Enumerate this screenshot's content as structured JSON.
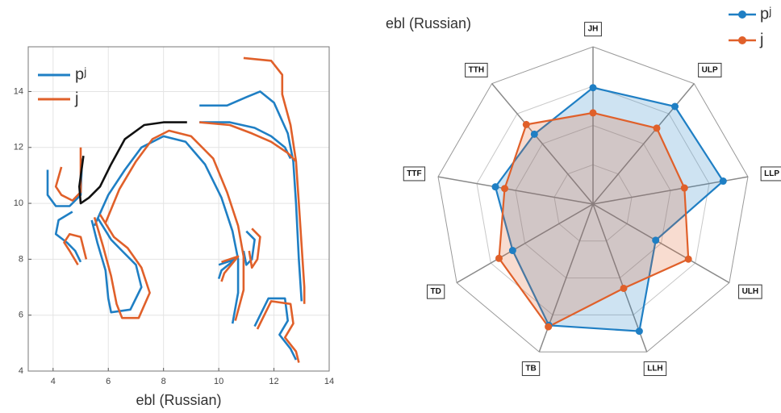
{
  "chart_data": [
    {
      "type": "line",
      "xlabel": "ebl (Russian)",
      "xlim": [
        3.1,
        14
      ],
      "ylim": [
        4,
        15.6
      ],
      "xticks": [
        4,
        6,
        8,
        10,
        12,
        14
      ],
      "yticks": [
        4,
        6,
        8,
        10,
        12,
        14
      ],
      "grid": true,
      "legend": "upper left",
      "series": [
        {
          "name": "pʲ",
          "color": "#1f7fc4",
          "x": [
            3.8,
            3.8,
            4.1,
            4.6,
            5.0,
            5.05,
            null,
            4.7,
            4.2,
            4.1,
            4.5,
            4.8,
            5.0,
            null,
            5.4,
            5.6,
            5.9,
            6.0,
            6.1,
            6.8,
            7.2,
            7.0,
            6.5,
            6.1,
            5.6,
            null,
            5.5,
            6.0,
            6.6,
            7.2,
            8.0,
            8.8,
            9.5,
            10.1,
            10.5,
            10.7,
            10.7,
            10.5,
            null,
            9.3,
            10.3,
            11.0,
            11.5,
            12.0,
            12.5,
            12.7,
            12.8,
            12.9,
            13.0,
            null,
            9.3,
            10.4,
            11.3,
            11.9,
            12.4,
            12.6,
            null,
            11.0,
            11.3,
            11.2,
            11.0,
            10.9,
            null,
            10.0,
            10.6,
            10.1,
            10.0,
            null,
            11.3,
            11.8,
            12.4,
            12.5,
            12.2,
            12.6,
            12.8
          ],
          "values": [
            11.2,
            10.3,
            9.9,
            9.9,
            10.3,
            11.6,
            null,
            9.7,
            9.4,
            8.9,
            8.6,
            8.3,
            7.9,
            null,
            9.4,
            8.6,
            7.6,
            6.6,
            6.1,
            6.2,
            7.0,
            7.8,
            8.3,
            8.7,
            9.5,
            null,
            9.2,
            10.3,
            11.2,
            12.0,
            12.4,
            12.2,
            11.4,
            10.2,
            9.0,
            8.0,
            6.8,
            5.7,
            null,
            13.5,
            13.5,
            13.8,
            14.0,
            13.6,
            12.5,
            11.5,
            10.0,
            8.0,
            6.5,
            null,
            12.9,
            12.9,
            12.7,
            12.4,
            12.0,
            11.6,
            null,
            9.0,
            8.7,
            8.0,
            7.8,
            8.3,
            null,
            7.8,
            8.0,
            7.6,
            7.3,
            null,
            5.6,
            6.6,
            6.6,
            5.8,
            5.3,
            4.8,
            4.4
          ]
        },
        {
          "name": "j",
          "color": "#e0602a",
          "x": [
            4.3,
            4.1,
            4.3,
            4.7,
            5.0,
            5.0,
            null,
            4.9,
            4.6,
            4.4,
            4.6,
            5.0,
            5.2,
            null,
            5.5,
            5.8,
            6.1,
            6.3,
            6.5,
            7.1,
            7.5,
            7.2,
            6.7,
            6.2,
            5.7,
            null,
            5.9,
            6.4,
            7.0,
            7.6,
            8.2,
            9.0,
            9.8,
            10.3,
            10.7,
            10.9,
            10.9,
            10.6,
            null,
            10.9,
            11.9,
            12.3,
            12.3,
            12.6,
            12.8,
            12.9,
            13.0,
            13.1,
            13.1,
            null,
            9.3,
            10.4,
            11.2,
            11.9,
            12.5,
            12.8,
            null,
            11.2,
            11.5,
            11.4,
            11.2,
            11.1,
            null,
            10.1,
            10.7,
            10.2,
            10.1,
            null,
            11.4,
            11.9,
            12.6,
            12.7,
            12.4,
            12.8,
            12.9
          ],
          "values": [
            11.3,
            10.6,
            10.3,
            10.1,
            10.4,
            12.0,
            null,
            7.8,
            8.3,
            8.6,
            8.9,
            8.8,
            8.0,
            null,
            9.5,
            8.5,
            7.4,
            6.4,
            5.9,
            5.9,
            6.8,
            7.7,
            8.4,
            8.8,
            9.6,
            null,
            9.3,
            10.5,
            11.5,
            12.3,
            12.6,
            12.4,
            11.6,
            10.4,
            9.2,
            8.1,
            6.9,
            5.8,
            null,
            15.2,
            15.1,
            14.6,
            13.9,
            12.8,
            11.5,
            10.0,
            8.5,
            7.0,
            6.4,
            null,
            12.9,
            12.8,
            12.5,
            12.2,
            11.8,
            11.5,
            null,
            9.1,
            8.8,
            8.0,
            7.7,
            8.3,
            null,
            7.9,
            8.1,
            7.5,
            7.2,
            null,
            5.5,
            6.5,
            6.4,
            5.7,
            5.2,
            4.7,
            4.3
          ]
        },
        {
          "color": "#111111",
          "x": [
            5.1,
            4.95,
            5.0,
            5.3,
            5.7,
            6.1,
            6.6,
            7.3,
            8.0,
            8.85
          ],
          "values": [
            11.7,
            10.6,
            10.0,
            10.2,
            10.6,
            11.4,
            12.3,
            12.8,
            12.9,
            12.9
          ]
        }
      ]
    },
    {
      "type": "radar",
      "title": "ebl (Russian)",
      "legend": "upper right",
      "categories": [
        "JH",
        "ULP",
        "LLP",
        "ULH",
        "LLH",
        "TB",
        "TD",
        "TTF",
        "TTH"
      ],
      "rlim": [
        0,
        1
      ],
      "rticks": [
        0.25,
        0.5,
        0.75,
        1
      ],
      "series": [
        {
          "name": "pʲ",
          "color": "#1f7fc4",
          "values": [
            0.74,
            0.81,
            0.84,
            0.46,
            0.86,
            0.82,
            0.59,
            0.63,
            0.58
          ]
        },
        {
          "name": "j",
          "color": "#e0602a",
          "values": [
            0.58,
            0.63,
            0.59,
            0.7,
            0.57,
            0.83,
            0.69,
            0.57,
            0.66
          ]
        }
      ]
    }
  ]
}
